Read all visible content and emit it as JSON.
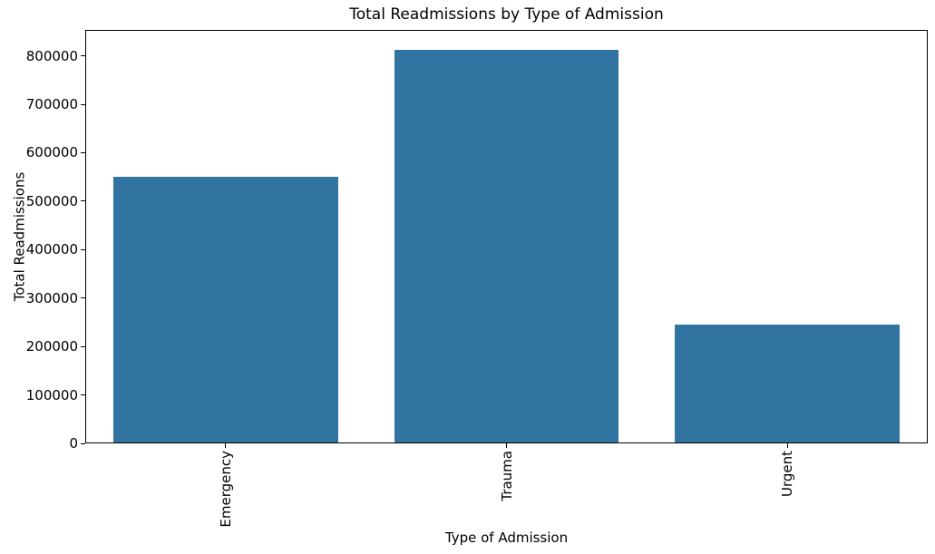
{
  "chart_data": {
    "type": "bar",
    "title": "Total Readmissions by Type of Admission",
    "xlabel": "Type of Admission",
    "ylabel": "Total Readmissions",
    "categories": [
      "Emergency",
      "Trauma",
      "Urgent"
    ],
    "values": [
      551000,
      813000,
      245000
    ],
    "yticks": [
      0,
      100000,
      200000,
      300000,
      400000,
      500000,
      600000,
      700000,
      800000
    ],
    "ylim": [
      0,
      853650
    ],
    "bar_width_fraction": 0.8,
    "grid": false,
    "legend_position": "none",
    "bar_color": "#3274a1",
    "axis_color": "#000000",
    "text_color": "#000000",
    "background_color": "#ffffff"
  }
}
